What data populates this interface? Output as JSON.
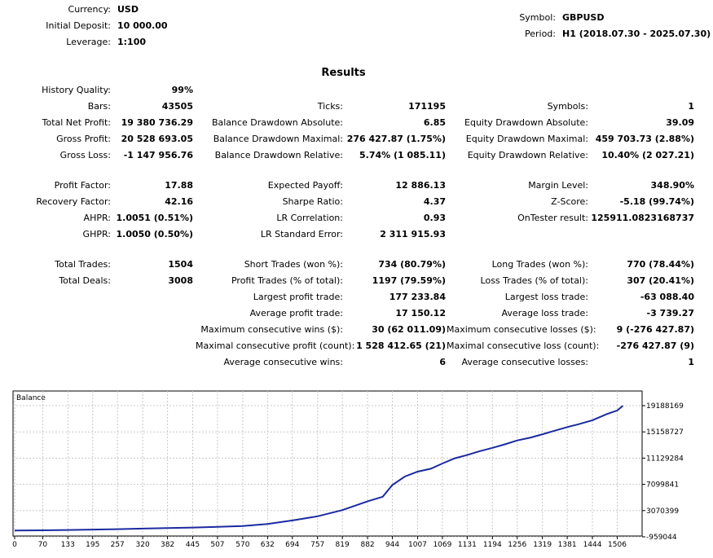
{
  "header": {
    "left": [
      {
        "label": "Currency:",
        "value": "USD"
      },
      {
        "label": "Initial Deposit:",
        "value": "10 000.00"
      },
      {
        "label": "Leverage:",
        "value": "1:100"
      }
    ],
    "right": [
      {
        "label": "Symbol:",
        "value": "GBPUSD"
      },
      {
        "label": "Period:",
        "value": "H1 (2018.07.30 - 2025.07.30)"
      }
    ]
  },
  "results_title": "Results",
  "col1": [
    {
      "label": "History Quality:",
      "value": "99%"
    },
    {
      "label": "Bars:",
      "value": "43505"
    },
    {
      "label": "Total Net Profit:",
      "value": "19 380 736.29"
    },
    {
      "label": "Gross Profit:",
      "value": "20 528 693.05"
    },
    {
      "label": "Gross Loss:",
      "value": "-1 147 956.76"
    },
    {
      "label": "Profit Factor:",
      "value": "17.88"
    },
    {
      "label": "Recovery Factor:",
      "value": "42.16"
    },
    {
      "label": "AHPR:",
      "value": "1.0051 (0.51%)"
    },
    {
      "label": "GHPR:",
      "value": "1.0050 (0.50%)"
    },
    {
      "label": "Total Trades:",
      "value": "1504"
    },
    {
      "label": "Total Deals:",
      "value": "3008"
    }
  ],
  "col2": [
    {
      "label": "Ticks:",
      "value": "171195"
    },
    {
      "label": "Balance Drawdown Absolute:",
      "value": "6.85"
    },
    {
      "label": "Balance Drawdown Maximal:",
      "value": "276 427.87 (1.75%)"
    },
    {
      "label": "Balance Drawdown Relative:",
      "value": "5.74% (1 085.11)"
    },
    {
      "label": "Expected Payoff:",
      "value": "12 886.13"
    },
    {
      "label": "Sharpe Ratio:",
      "value": "4.37"
    },
    {
      "label": "LR Correlation:",
      "value": "0.93"
    },
    {
      "label": "LR Standard Error:",
      "value": "2 311 915.93"
    },
    {
      "label": "Short Trades (won %):",
      "value": "734 (80.79%)"
    },
    {
      "label": "Profit Trades (% of total):",
      "value": "1197 (79.59%)"
    },
    {
      "label": "Largest profit trade:",
      "value": "177 233.84"
    },
    {
      "label": "Average profit trade:",
      "value": "17 150.12"
    },
    {
      "label": "Maximum consecutive wins ($):",
      "value": "30 (62 011.09)"
    },
    {
      "label": "Maximal consecutive profit (count):",
      "value": "1 528 412.65 (21)"
    },
    {
      "label": "Average consecutive wins:",
      "value": "6"
    }
  ],
  "col3": [
    {
      "label": "Symbols:",
      "value": "1"
    },
    {
      "label": "Equity Drawdown Absolute:",
      "value": "39.09"
    },
    {
      "label": "Equity Drawdown Maximal:",
      "value": "459 703.73 (2.88%)"
    },
    {
      "label": "Equity Drawdown Relative:",
      "value": "10.40% (2 027.21)"
    },
    {
      "label": "Margin Level:",
      "value": "348.90%"
    },
    {
      "label": "Z-Score:",
      "value": "-5.18 (99.74%)"
    },
    {
      "label": "OnTester result:",
      "value": "125911.0823168737"
    },
    {
      "label": "Long Trades (won %):",
      "value": "770 (78.44%)"
    },
    {
      "label": "Loss Trades (% of total):",
      "value": "307 (20.41%)"
    },
    {
      "label": "Largest loss trade:",
      "value": "-63 088.40"
    },
    {
      "label": "Average loss trade:",
      "value": "-3 739.27"
    },
    {
      "label": "Maximum consecutive losses ($):",
      "value": "9 (-276 427.87)"
    },
    {
      "label": "Maximal consecutive loss (count):",
      "value": "-276 427.87 (9)"
    },
    {
      "label": "Average consecutive losses:",
      "value": "1"
    }
  ],
  "chart_data": {
    "type": "line",
    "title": "Balance",
    "x_ticks": [
      "0",
      "70",
      "133",
      "195",
      "257",
      "320",
      "382",
      "445",
      "507",
      "570",
      "632",
      "694",
      "757",
      "819",
      "882",
      "944",
      "1007",
      "1069",
      "1131",
      "1194",
      "1256",
      "1319",
      "1381",
      "1444",
      "1506"
    ],
    "y_ticks": [
      "19188169",
      "15158727",
      "11129284",
      "7099841",
      "3070399",
      "-959044"
    ],
    "ylim": [
      -959044,
      19188169
    ],
    "xlim": [
      0,
      1560
    ],
    "grid": true,
    "series": [
      {
        "color": "#1b2aa0",
        "x": [
          0,
          70,
          133,
          195,
          257,
          320,
          382,
          445,
          507,
          570,
          632,
          694,
          757,
          819,
          882,
          920,
          944,
          975,
          1007,
          1040,
          1069,
          1100,
          1131,
          1160,
          1194,
          1225,
          1256,
          1290,
          1319,
          1350,
          1381,
          1410,
          1444,
          1480,
          1506,
          1520
        ],
        "y": [
          10000,
          40000,
          90000,
          150000,
          220000,
          300000,
          380000,
          470000,
          570000,
          700000,
          1000000,
          1550000,
          2200000,
          3150000,
          4500000,
          5200000,
          7000000,
          8300000,
          9050000,
          9500000,
          10300000,
          11100000,
          11600000,
          12150000,
          12700000,
          13250000,
          13850000,
          14300000,
          14800000,
          15350000,
          15900000,
          16350000,
          16950000,
          17900000,
          18450000,
          19180000
        ]
      }
    ]
  }
}
